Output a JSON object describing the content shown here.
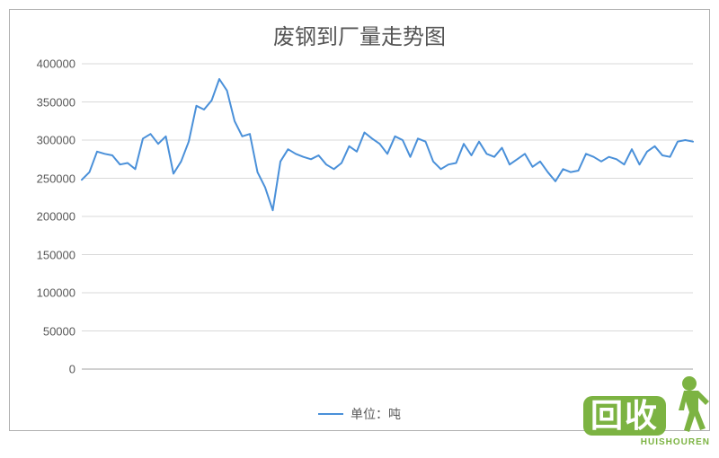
{
  "chart": {
    "type": "line",
    "title": "废钢到厂量走势图",
    "title_fontsize": 24,
    "title_color": "#555555",
    "legend_label": "单位：吨",
    "legend_fontsize": 14,
    "line_color": "#4a90d9",
    "line_width": 2,
    "background_color": "#ffffff",
    "grid_color": "#d9d9d9",
    "border_color": "#b0b0b0",
    "axis_label_color": "#595959",
    "axis_label_fontsize": 13,
    "ylim": [
      0,
      400000
    ],
    "ytick_step": 50000,
    "y_ticks": [
      0,
      50000,
      100000,
      150000,
      200000,
      250000,
      300000,
      350000,
      400000
    ],
    "values": [
      248000,
      258000,
      285000,
      282000,
      280000,
      268000,
      270000,
      262000,
      302000,
      308000,
      295000,
      305000,
      256000,
      272000,
      298000,
      345000,
      340000,
      352000,
      380000,
      365000,
      325000,
      305000,
      308000,
      258000,
      238000,
      208000,
      272000,
      288000,
      282000,
      278000,
      275000,
      280000,
      268000,
      262000,
      270000,
      292000,
      285000,
      310000,
      302000,
      295000,
      282000,
      305000,
      300000,
      278000,
      302000,
      298000,
      272000,
      262000,
      268000,
      270000,
      295000,
      280000,
      298000,
      282000,
      278000,
      290000,
      268000,
      275000,
      282000,
      265000,
      272000,
      258000,
      246000,
      262000,
      258000,
      260000,
      282000,
      278000,
      272000,
      278000,
      275000,
      268000,
      288000,
      268000,
      285000,
      292000,
      280000,
      278000,
      298000,
      300000,
      298000
    ]
  },
  "watermark": {
    "box_text": "回收",
    "box_color": "#7cb342",
    "sub_text": "HUISHOUREN",
    "sub_color": "#7cb342",
    "person_color": "#7cb342"
  }
}
